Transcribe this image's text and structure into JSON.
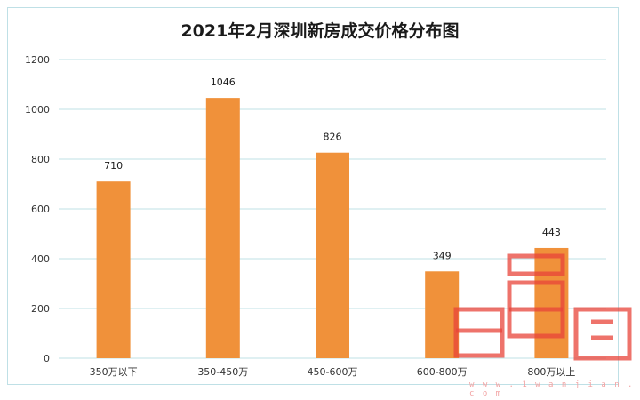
{
  "chart_data": {
    "type": "bar",
    "title": "2021年2月深圳新房成交价格分布图",
    "categories": [
      "350万以下",
      "350-450万",
      "450-600万",
      "600-800万",
      "800万以上"
    ],
    "values": [
      710,
      1046,
      826,
      349,
      443
    ],
    "xlabel": "",
    "ylabel": "",
    "ylim": [
      0,
      1200
    ],
    "yticks": [
      0,
      200,
      400,
      600,
      800,
      1000,
      1200
    ],
    "grid": true,
    "legend": "none",
    "colors": {
      "bar": "#f0913a",
      "grid": "#bfe0e6",
      "axis_text": "#333333"
    }
  },
  "watermark": {
    "logo_text": "官网",
    "url_text": "w w w . 1 w a n j i a n . c o m",
    "color": "#e8443a"
  }
}
